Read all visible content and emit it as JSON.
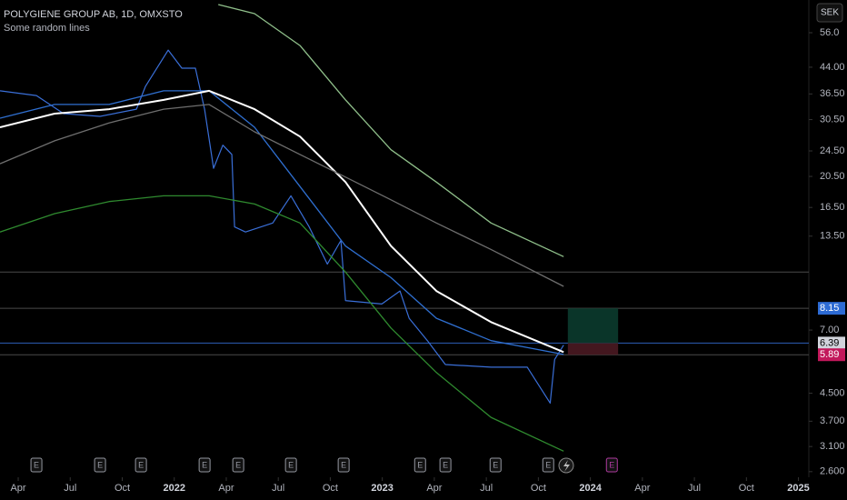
{
  "header": {
    "title": "POLYGIENE GROUP AB, 1D, OMXSTO",
    "subtitle": "Some random lines",
    "currency": "SEK"
  },
  "chart_data": {
    "type": "line",
    "log_scale": true,
    "grid": false,
    "xlim": [
      1.95,
      48.6
    ],
    "ylim": [
      2.5,
      70.4
    ],
    "xticks": [
      {
        "value": 3,
        "label": "Apr"
      },
      {
        "value": 6,
        "label": "Jul"
      },
      {
        "value": 9,
        "label": "Oct"
      },
      {
        "value": 12,
        "label": "2022"
      },
      {
        "value": 15,
        "label": "Apr"
      },
      {
        "value": 18,
        "label": "Jul"
      },
      {
        "value": 21,
        "label": "Oct"
      },
      {
        "value": 24,
        "label": "2023"
      },
      {
        "value": 27,
        "label": "Apr"
      },
      {
        "value": 30,
        "label": "Jul"
      },
      {
        "value": 33,
        "label": "Oct"
      },
      {
        "value": 36,
        "label": "2024"
      },
      {
        "value": 39,
        "label": "Apr"
      },
      {
        "value": 42,
        "label": "Jul"
      },
      {
        "value": 45,
        "label": "Oct"
      },
      {
        "value": 48,
        "label": "2025"
      }
    ],
    "yticks": [
      {
        "value": 56,
        "label": "56.0"
      },
      {
        "value": 44,
        "label": "44.00"
      },
      {
        "value": 36.5,
        "label": "36.50"
      },
      {
        "value": 30.5,
        "label": "30.50"
      },
      {
        "value": 24.5,
        "label": "24.50"
      },
      {
        "value": 20.5,
        "label": "20.50"
      },
      {
        "value": 16.5,
        "label": "16.50"
      },
      {
        "value": 13.5,
        "label": "13.50"
      },
      {
        "value": 7,
        "label": "7.00"
      },
      {
        "value": 4.5,
        "label": "4.500"
      },
      {
        "value": 3.7,
        "label": "3.700"
      },
      {
        "value": 3.1,
        "label": "3.100"
      },
      {
        "value": 2.6,
        "label": "2.600"
      }
    ],
    "series": [
      {
        "color": "#3a6fd8",
        "width": 1.2,
        "x": [
          1.95,
          4.05,
          5.62,
          7.72,
          9.82,
          10.34,
          11.65,
          12.44,
          13.22,
          13.75,
          14.27,
          14.8,
          15.32,
          15.48,
          16.11,
          17.68,
          18.73,
          19.78,
          20.83,
          21.61,
          21.88,
          23.97,
          25.02,
          25.55,
          26.6,
          27.64,
          30.27,
          32.36,
          33.68,
          33.94,
          34.46
        ],
        "values": [
          37.3,
          36.1,
          31.8,
          31.2,
          32.8,
          38.5,
          49.6,
          43.7,
          43.7,
          32.8,
          21.7,
          25.5,
          23.9,
          14.4,
          13.9,
          14.8,
          17.9,
          14.4,
          11.1,
          13.1,
          8.6,
          8.4,
          9.2,
          7.6,
          6.5,
          5.5,
          5.4,
          5.4,
          4.2,
          5.7,
          6.3
        ]
      },
      {
        "color": "#2f6fd0",
        "width": 1.3,
        "x": [
          1.95,
          5.1,
          8.24,
          11.39,
          14.01,
          16.63,
          19.25,
          21.88,
          24.5,
          27.12,
          30.27,
          34.46
        ],
        "values": [
          30.8,
          33.9,
          33.9,
          37.3,
          37.3,
          28.9,
          19.1,
          12.6,
          10.1,
          7.6,
          6.5,
          5.9
        ]
      },
      {
        "color": "#ffffff",
        "width": 2,
        "x": [
          1.95,
          5.1,
          8.24,
          11.39,
          14.01,
          16.63,
          19.25,
          21.88,
          24.5,
          27.12,
          30.27,
          34.46
        ],
        "values": [
          28.9,
          31.8,
          32.8,
          35.0,
          37.3,
          32.8,
          27.1,
          19.7,
          12.6,
          9.2,
          7.4,
          6.0
        ]
      },
      {
        "color": "#6e6e6e",
        "width": 1.3,
        "x": [
          1.95,
          5.1,
          8.24,
          11.39,
          14.01,
          16.63,
          19.25,
          21.88,
          24.5,
          27.12,
          30.27,
          34.46
        ],
        "values": [
          22.4,
          26.3,
          29.8,
          32.8,
          33.9,
          28.0,
          23.9,
          20.4,
          17.4,
          14.8,
          12.3,
          9.5
        ]
      },
      {
        "color": "#8fbf8a",
        "width": 1.3,
        "x": [
          14.54,
          16.63,
          19.25,
          21.88,
          24.5,
          27.12,
          30.27,
          34.46
        ],
        "values": [
          68.2,
          64.0,
          51.2,
          35.0,
          24.7,
          19.7,
          14.8,
          11.7
        ]
      },
      {
        "color": "#2f8a2f",
        "width": 1.3,
        "x": [
          1.95,
          5.1,
          8.24,
          11.39,
          14.01,
          16.63,
          19.25,
          21.88,
          24.5,
          27.12,
          30.27,
          34.46
        ],
        "values": [
          13.9,
          15.8,
          17.2,
          17.9,
          17.9,
          16.9,
          14.8,
          10.5,
          7.1,
          5.2,
          3.8,
          3.0
        ]
      }
    ],
    "price_lines": [
      {
        "value": 10.5,
        "color": "#4a4a4a"
      },
      {
        "value": 8.15,
        "label": "8.15",
        "color": "#4a4a4a",
        "badge": "#2d6bd4"
      },
      {
        "value": 6.39,
        "label": "6.39",
        "color": "#2d5fb8",
        "badge": "#d1d4dc"
      },
      {
        "value": 5.89,
        "label": "5.89",
        "color": "#4a4a4a",
        "badge": "#c2185b"
      }
    ],
    "position": {
      "x": [
        34.7,
        37.6
      ],
      "entry": 6.39,
      "target": 8.15,
      "stop": 5.89
    },
    "events": [
      {
        "x": 4.05,
        "label": "E"
      },
      {
        "x": 7.72,
        "label": "E"
      },
      {
        "x": 10.08,
        "label": "E"
      },
      {
        "x": 13.75,
        "label": "E"
      },
      {
        "x": 15.69,
        "label": "E"
      },
      {
        "x": 18.73,
        "label": "E"
      },
      {
        "x": 21.77,
        "label": "E"
      },
      {
        "x": 26.18,
        "label": "E"
      },
      {
        "x": 27.64,
        "label": "E"
      },
      {
        "x": 30.53,
        "label": "E"
      },
      {
        "x": 33.57,
        "label": "E"
      },
      {
        "x": 37.24,
        "label": "E",
        "color": "#b03aa0"
      }
    ]
  }
}
